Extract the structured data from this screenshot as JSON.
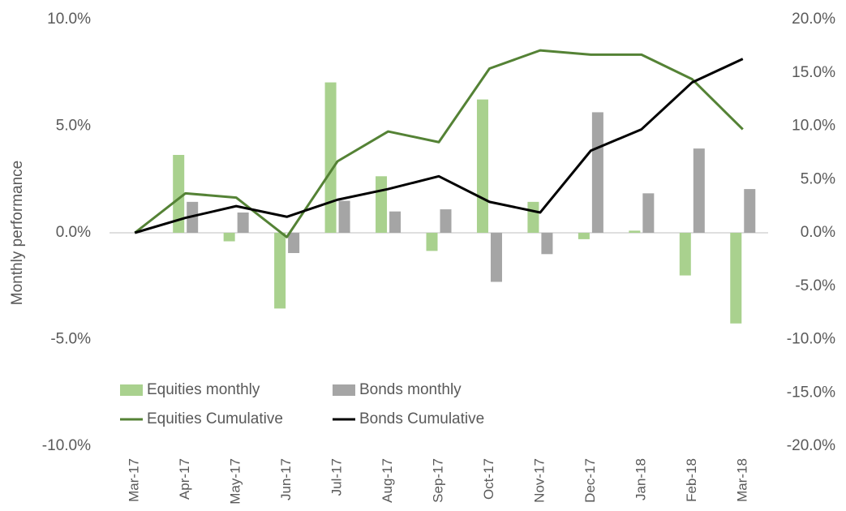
{
  "chart_data": {
    "type": "combo",
    "y_label": "Monthly performance",
    "categories": [
      "Mar-17",
      "Apr-17",
      "May-17",
      "Jun-17",
      "Jul-17",
      "Aug-17",
      "Sep-17",
      "Oct-17",
      "Nov-17",
      "Dec-17",
      "Jan-18",
      "Feb-18",
      "Mar-18"
    ],
    "series": [
      {
        "name": "Equities monthly",
        "type": "bar",
        "color": "#a9d18e",
        "values": [
          0,
          3.65,
          -0.4,
          -3.55,
          7.05,
          2.65,
          -0.85,
          6.25,
          1.45,
          -0.3,
          0.1,
          -2.0,
          -4.25
        ]
      },
      {
        "name": "Bonds monthly",
        "type": "bar",
        "color": "#a5a5a5",
        "values": [
          0,
          1.45,
          0.95,
          -0.95,
          1.5,
          1.0,
          1.1,
          -2.3,
          -1.0,
          5.65,
          1.85,
          3.95,
          2.05
        ]
      },
      {
        "name": "Equities Cumulative",
        "type": "line",
        "axis": "y2",
        "color": "#548235",
        "values": [
          0,
          3.7,
          3.3,
          -0.4,
          6.7,
          9.5,
          8.5,
          15.4,
          17.1,
          16.7,
          16.7,
          14.4,
          9.7
        ]
      },
      {
        "name": "Bonds Cumulative",
        "type": "line",
        "axis": "y2",
        "color": "#000000",
        "values": [
          0,
          1.4,
          2.5,
          1.5,
          3.1,
          4.1,
          5.3,
          2.9,
          1.9,
          7.7,
          9.7,
          14.1,
          16.3
        ]
      }
    ],
    "ylim": [
      -10,
      10
    ],
    "yticks": [
      {
        "value": -10,
        "label": "-10.0%"
      },
      {
        "value": -5,
        "label": "-5.0%"
      },
      {
        "value": 0,
        "label": "0.0%"
      },
      {
        "value": 5,
        "label": "5.0%"
      },
      {
        "value": 10,
        "label": "10.0%"
      }
    ],
    "y2lim": [
      -20,
      20
    ],
    "y2ticks": [
      {
        "value": -20,
        "label": "-20.0%"
      },
      {
        "value": -15,
        "label": "-15.0%"
      },
      {
        "value": -10,
        "label": "-10.0%"
      },
      {
        "value": -5,
        "label": "-5.0%"
      },
      {
        "value": 0,
        "label": "0.0%"
      },
      {
        "value": 5,
        "label": "5.0%"
      },
      {
        "value": 10,
        "label": "10.0%"
      },
      {
        "value": 15,
        "label": "15.0%"
      },
      {
        "value": 20,
        "label": "20.0%"
      }
    ],
    "legend": "bottom-left"
  }
}
